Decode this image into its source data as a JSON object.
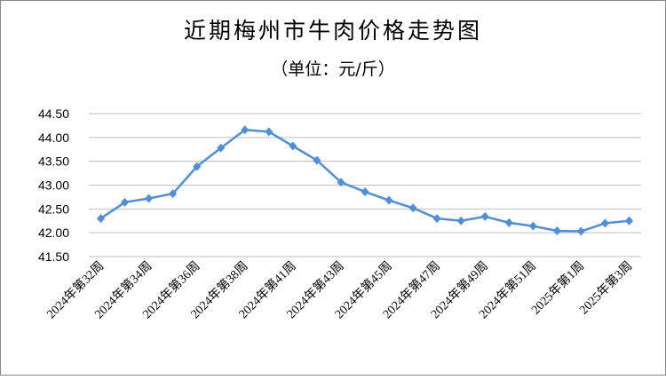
{
  "chart_data": {
    "type": "line",
    "title": "近期梅州市牛肉价格走势图",
    "subtitle": "（单位：元/斤）",
    "categories": [
      "2024年第32周",
      null,
      "2024年第34周",
      null,
      "2024年第36周",
      null,
      "2024年第38周",
      null,
      "2024年第41周",
      null,
      "2024年第43周",
      null,
      "2024年第45周",
      null,
      "2024年第47周",
      null,
      "2024年第49周",
      null,
      "2024年第51周",
      null,
      "2025年第1周",
      null,
      "2025年第3周"
    ],
    "series": [
      {
        "color": "#4f8fd8",
        "values": [
          42.3,
          42.64,
          42.72,
          42.82,
          43.39,
          43.78,
          44.16,
          44.12,
          43.82,
          43.52,
          43.06,
          42.86,
          42.68,
          42.52,
          42.3,
          42.25,
          42.34,
          42.21,
          42.14,
          42.04,
          42.03,
          42.2,
          42.25
        ]
      }
    ],
    "ylim": [
      41.5,
      44.5
    ],
    "yticks": [
      {
        "value": 41.5,
        "label": "41.50"
      },
      {
        "value": 42,
        "label": "42.00"
      },
      {
        "value": 42.5,
        "label": "42.50"
      },
      {
        "value": 43,
        "label": "43.00"
      },
      {
        "value": 43.5,
        "label": "43.50"
      },
      {
        "value": 44,
        "label": "44.00"
      },
      {
        "value": 44.5,
        "label": "44.50"
      }
    ],
    "grid": true
  }
}
